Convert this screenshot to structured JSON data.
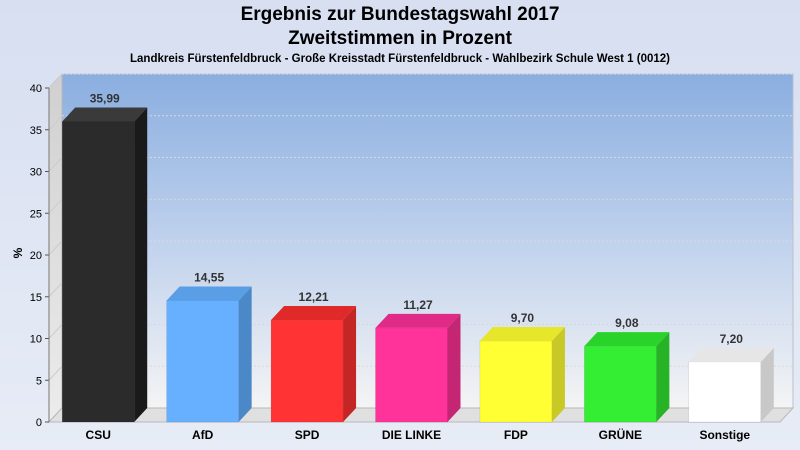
{
  "chart_data": {
    "type": "bar",
    "title_line1": "Ergebnis zur Bundestagswahl 2017",
    "title_line2": "Zweitstimmen in Prozent",
    "subtitle": "Landkreis Fürstenfeldbruck - Große Kreisstadt Fürstenfeldbruck - Wahlbezirk Schule West 1 (0012)",
    "ylabel": "%",
    "xlabel": "",
    "ylim": [
      0,
      40
    ],
    "yticks": [
      0,
      5,
      10,
      15,
      20,
      25,
      30,
      35,
      40
    ],
    "grid": true,
    "categories": [
      "CSU",
      "AfD",
      "SPD",
      "DIE LINKE",
      "FDP",
      "GRÜNE",
      "Sonstige"
    ],
    "values": [
      35.99,
      14.55,
      12.21,
      11.27,
      9.7,
      9.08,
      7.2
    ],
    "value_labels": [
      "35,99",
      "14,55",
      "12,21",
      "11,27",
      "9,70",
      "9,08",
      "7,20"
    ],
    "colors": [
      "#2b2b2b",
      "#66b0ff",
      "#ff3333",
      "#ff3399",
      "#ffff33",
      "#33ee33",
      "#ffffff"
    ],
    "side_colors": [
      "#1a1a1a",
      "#4a88c8",
      "#c42626",
      "#c42673",
      "#c8c826",
      "#26b326",
      "#c8c8c8"
    ],
    "top_colors": [
      "#3a3a3a",
      "#5a9ee6",
      "#e02a2a",
      "#e02a88",
      "#e6e62a",
      "#2ad32a",
      "#e6e6e6"
    ]
  }
}
